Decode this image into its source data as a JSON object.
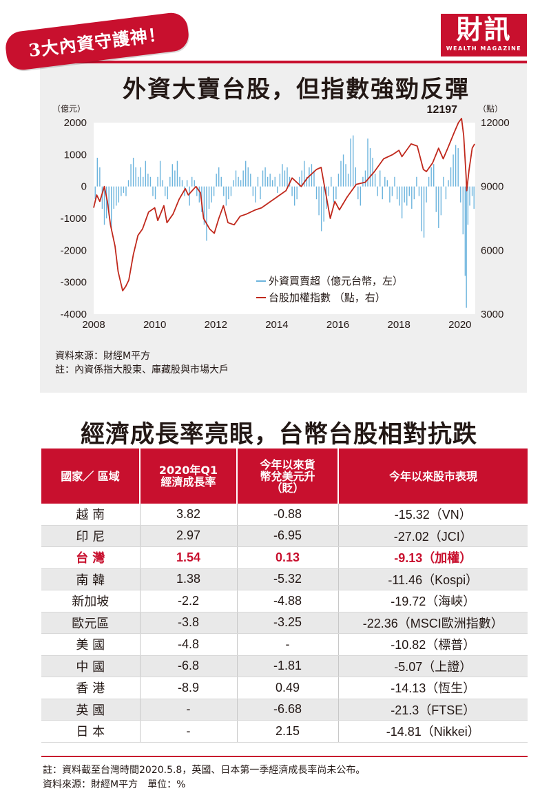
{
  "badge": "3大內資守護神！",
  "logo": {
    "main": "財訊",
    "sub": "WEALTH MAGAZINE"
  },
  "chart_title": "外資大賣台股，但指數強勁反彈",
  "chart_data": {
    "type": "bar+line",
    "title": "外資大賣台股，但指數強勁反彈",
    "left_axis": {
      "unit": "（億元）",
      "ticks": [
        "2000",
        "1000",
        "0",
        "-1000",
        "-2000",
        "-3000",
        "-4000"
      ],
      "range": [
        -4000,
        2000
      ]
    },
    "right_axis": {
      "unit": "（點）",
      "ticks": [
        "12000",
        "9000",
        "6000",
        "3000"
      ],
      "range": [
        3000,
        12000
      ]
    },
    "x_ticks": [
      "2008",
      "2010",
      "2012",
      "2014",
      "2016",
      "2018",
      "2020"
    ],
    "x_range": [
      2008.0,
      2020.5
    ],
    "peak_label": "12197",
    "peak": {
      "year": 2020.05,
      "value": 12197
    },
    "legend": [
      {
        "label": "外資買賣超（億元台幣，左）",
        "color": "#6cb4dd"
      },
      {
        "label": "台股加權指數 （點，右）",
        "color": "#c0281c"
      }
    ],
    "series": [
      {
        "name": "台股加權指數",
        "axis": "right",
        "color": "#c0281c",
        "points": [
          [
            2008.0,
            8000
          ],
          [
            2008.1,
            8600
          ],
          [
            2008.2,
            8300
          ],
          [
            2008.35,
            9000
          ],
          [
            2008.45,
            8300
          ],
          [
            2008.55,
            7200
          ],
          [
            2008.7,
            6200
          ],
          [
            2008.8,
            5000
          ],
          [
            2008.9,
            4400
          ],
          [
            2008.95,
            4100
          ],
          [
            2009.05,
            4300
          ],
          [
            2009.15,
            4600
          ],
          [
            2009.3,
            5800
          ],
          [
            2009.45,
            6700
          ],
          [
            2009.6,
            7000
          ],
          [
            2009.8,
            7800
          ],
          [
            2010.0,
            8000
          ],
          [
            2010.1,
            7400
          ],
          [
            2010.3,
            8100
          ],
          [
            2010.4,
            7300
          ],
          [
            2010.6,
            7700
          ],
          [
            2010.8,
            8400
          ],
          [
            2011.0,
            8900
          ],
          [
            2011.1,
            8600
          ],
          [
            2011.35,
            9000
          ],
          [
            2011.5,
            8700
          ],
          [
            2011.6,
            7500
          ],
          [
            2011.8,
            7000
          ],
          [
            2011.95,
            6800
          ],
          [
            2012.1,
            7500
          ],
          [
            2012.25,
            8100
          ],
          [
            2012.4,
            7300
          ],
          [
            2012.6,
            7200
          ],
          [
            2012.8,
            7600
          ],
          [
            2013.0,
            7700
          ],
          [
            2013.3,
            7900
          ],
          [
            2013.5,
            8000
          ],
          [
            2013.8,
            8300
          ],
          [
            2014.0,
            8500
          ],
          [
            2014.3,
            8800
          ],
          [
            2014.5,
            9400
          ],
          [
            2014.8,
            9000
          ],
          [
            2015.0,
            9400
          ],
          [
            2015.3,
            9800
          ],
          [
            2015.45,
            9900
          ],
          [
            2015.6,
            8700
          ],
          [
            2015.75,
            7500
          ],
          [
            2015.9,
            8300
          ],
          [
            2016.05,
            7900
          ],
          [
            2016.3,
            8500
          ],
          [
            2016.6,
            9100
          ],
          [
            2016.9,
            9200
          ],
          [
            2017.2,
            9700
          ],
          [
            2017.5,
            10300
          ],
          [
            2017.8,
            10500
          ],
          [
            2018.0,
            10700
          ],
          [
            2018.1,
            10400
          ],
          [
            2018.4,
            11000
          ],
          [
            2018.6,
            10900
          ],
          [
            2018.8,
            9800
          ],
          [
            2018.9,
            9700
          ],
          [
            2019.1,
            10100
          ],
          [
            2019.3,
            10800
          ],
          [
            2019.45,
            10300
          ],
          [
            2019.6,
            10800
          ],
          [
            2019.8,
            11500
          ],
          [
            2019.95,
            12000
          ],
          [
            2020.05,
            12197
          ],
          [
            2020.12,
            11400
          ],
          [
            2020.2,
            9500
          ],
          [
            2020.22,
            8800
          ],
          [
            2020.3,
            9800
          ],
          [
            2020.4,
            10800
          ],
          [
            2020.48,
            11000
          ]
        ]
      },
      {
        "name": "外資買賣超",
        "axis": "left",
        "color": "#6cb4dd",
        "points": [
          [
            2008.05,
            -400
          ],
          [
            2008.12,
            900
          ],
          [
            2008.2,
            600
          ],
          [
            2008.28,
            -700
          ],
          [
            2008.35,
            -1200
          ],
          [
            2008.42,
            -1000
          ],
          [
            2008.5,
            -900
          ],
          [
            2008.58,
            -1300
          ],
          [
            2008.66,
            -700
          ],
          [
            2008.74,
            -600
          ],
          [
            2008.82,
            -500
          ],
          [
            2008.9,
            -300
          ],
          [
            2008.98,
            -200
          ],
          [
            2009.06,
            -300
          ],
          [
            2009.14,
            200
          ],
          [
            2009.22,
            700
          ],
          [
            2009.3,
            900
          ],
          [
            2009.38,
            600
          ],
          [
            2009.46,
            300
          ],
          [
            2009.54,
            600
          ],
          [
            2009.62,
            300
          ],
          [
            2009.7,
            800
          ],
          [
            2009.78,
            400
          ],
          [
            2009.86,
            300
          ],
          [
            2009.94,
            -300
          ],
          [
            2010.02,
            -400
          ],
          [
            2010.1,
            300
          ],
          [
            2010.18,
            800
          ],
          [
            2010.26,
            200
          ],
          [
            2010.34,
            -300
          ],
          [
            2010.42,
            -400
          ],
          [
            2010.5,
            300
          ],
          [
            2010.58,
            700
          ],
          [
            2010.66,
            500
          ],
          [
            2010.74,
            800
          ],
          [
            2010.82,
            300
          ],
          [
            2010.9,
            200
          ],
          [
            2010.98,
            -300
          ],
          [
            2011.06,
            200
          ],
          [
            2011.14,
            -600
          ],
          [
            2011.22,
            300
          ],
          [
            2011.3,
            200
          ],
          [
            2011.38,
            -300
          ],
          [
            2011.46,
            -500
          ],
          [
            2011.54,
            -800
          ],
          [
            2011.62,
            -1200
          ],
          [
            2011.7,
            -1700
          ],
          [
            2011.78,
            -700
          ],
          [
            2011.86,
            -500
          ],
          [
            2011.94,
            -300
          ],
          [
            2012.02,
            400
          ],
          [
            2012.1,
            600
          ],
          [
            2012.18,
            300
          ],
          [
            2012.26,
            -300
          ],
          [
            2012.34,
            -600
          ],
          [
            2012.42,
            -400
          ],
          [
            2012.5,
            -300
          ],
          [
            2012.58,
            200
          ],
          [
            2012.66,
            500
          ],
          [
            2012.74,
            300
          ],
          [
            2012.82,
            200
          ],
          [
            2012.9,
            500
          ],
          [
            2012.98,
            800
          ],
          [
            2013.06,
            600
          ],
          [
            2013.14,
            400
          ],
          [
            2013.22,
            -300
          ],
          [
            2013.3,
            -500
          ],
          [
            2013.38,
            300
          ],
          [
            2013.46,
            -400
          ],
          [
            2013.54,
            500
          ],
          [
            2013.62,
            600
          ],
          [
            2013.7,
            300
          ],
          [
            2013.78,
            400
          ],
          [
            2013.86,
            200
          ],
          [
            2013.94,
            300
          ],
          [
            2014.02,
            -200
          ],
          [
            2014.1,
            400
          ],
          [
            2014.18,
            700
          ],
          [
            2014.26,
            500
          ],
          [
            2014.34,
            600
          ],
          [
            2014.42,
            300
          ],
          [
            2014.5,
            -300
          ],
          [
            2014.58,
            -600
          ],
          [
            2014.66,
            -400
          ],
          [
            2014.74,
            300
          ],
          [
            2014.82,
            500
          ],
          [
            2014.9,
            800
          ],
          [
            2014.98,
            300
          ],
          [
            2015.06,
            600
          ],
          [
            2015.14,
            700
          ],
          [
            2015.22,
            500
          ],
          [
            2015.3,
            -400
          ],
          [
            2015.38,
            -900
          ],
          [
            2015.46,
            -1400
          ],
          [
            2015.54,
            -1100
          ],
          [
            2015.62,
            -700
          ],
          [
            2015.7,
            -300
          ],
          [
            2015.78,
            300
          ],
          [
            2015.86,
            -500
          ],
          [
            2015.94,
            -400
          ],
          [
            2016.02,
            400
          ],
          [
            2016.1,
            800
          ],
          [
            2016.18,
            1000
          ],
          [
            2016.26,
            700
          ],
          [
            2016.34,
            400
          ],
          [
            2016.42,
            1500
          ],
          [
            2016.5,
            1600
          ],
          [
            2016.58,
            600
          ],
          [
            2016.66,
            -400
          ],
          [
            2016.74,
            -600
          ],
          [
            2016.82,
            300
          ],
          [
            2016.9,
            500
          ],
          [
            2016.98,
            1500
          ],
          [
            2017.06,
            1200
          ],
          [
            2017.14,
            900
          ],
          [
            2017.22,
            400
          ],
          [
            2017.3,
            -300
          ],
          [
            2017.38,
            500
          ],
          [
            2017.46,
            -400
          ],
          [
            2017.54,
            300
          ],
          [
            2017.62,
            200
          ],
          [
            2017.7,
            -500
          ],
          [
            2017.78,
            -300
          ],
          [
            2017.86,
            300
          ],
          [
            2017.94,
            -400
          ],
          [
            2018.02,
            -600
          ],
          [
            2018.1,
            -1000
          ],
          [
            2018.18,
            -500
          ],
          [
            2018.26,
            -600
          ],
          [
            2018.34,
            -300
          ],
          [
            2018.42,
            -700
          ],
          [
            2018.5,
            -400
          ],
          [
            2018.58,
            300
          ],
          [
            2018.66,
            -300
          ],
          [
            2018.74,
            -1400
          ],
          [
            2018.82,
            -1600
          ],
          [
            2018.9,
            -500
          ],
          [
            2018.98,
            300
          ],
          [
            2019.06,
            600
          ],
          [
            2019.14,
            700
          ],
          [
            2019.22,
            -800
          ],
          [
            2019.3,
            -1300
          ],
          [
            2019.38,
            -900
          ],
          [
            2019.46,
            300
          ],
          [
            2019.54,
            -400
          ],
          [
            2019.62,
            200
          ],
          [
            2019.7,
            600
          ],
          [
            2019.78,
            1000
          ],
          [
            2019.86,
            1300
          ],
          [
            2019.94,
            1200
          ],
          [
            2020.02,
            -500
          ],
          [
            2020.1,
            -1500
          ],
          [
            2020.17,
            -2800
          ],
          [
            2020.21,
            -3800
          ],
          [
            2020.26,
            -1200
          ],
          [
            2020.32,
            -600
          ],
          [
            2020.4,
            -300
          ],
          [
            2020.46,
            -700
          ]
        ]
      }
    ]
  },
  "chart_notes": [
    "資料來源：財經M平方",
    "註：內資係指大股東、庫藏股與市場大戶"
  ],
  "table_title": "經濟成長率亮眼，台幣台股相對抗跌",
  "table": {
    "headers": [
      "國家／ 區域",
      "2020年Q1\n經濟成長率",
      "今年以來貨\n幣兌美元升\n（貶）",
      "今年以來股市表現"
    ],
    "rows": [
      {
        "country": "越 南",
        "gdp": "3.82",
        "fx": "-0.88",
        "stock": "-15.32（VN）"
      },
      {
        "country": "印 尼",
        "gdp": "2.97",
        "fx": "-6.95",
        "stock": "-27.02（JCI）"
      },
      {
        "country": "台 灣",
        "gdp": "1.54",
        "fx": "0.13",
        "stock": "-9.13（加權）"
      },
      {
        "country": "南 韓",
        "gdp": "1.38",
        "fx": "-5.32",
        "stock": "-11.46（Kospi）"
      },
      {
        "country": "新加坡",
        "gdp": "-2.2",
        "fx": "-4.88",
        "stock": "-19.72（海峽）"
      },
      {
        "country": "歐元區",
        "gdp": "-3.8",
        "fx": "-3.25",
        "stock": "-22.36（MSCI歐洲指數）"
      },
      {
        "country": "美 國",
        "gdp": "-4.8",
        "fx": "-",
        "stock": "-10.82（標普）"
      },
      {
        "country": "中 國",
        "gdp": "-6.8",
        "fx": "-1.81",
        "stock": "-5.07（上證）"
      },
      {
        "country": "香 港",
        "gdp": "-8.9",
        "fx": "0.49",
        "stock": "-14.13（恆生）"
      },
      {
        "country": "英 國",
        "gdp": "-",
        "fx": "-6.68",
        "stock": "-21.3（FTSE）"
      },
      {
        "country": "日 本",
        "gdp": "-",
        "fx": "2.15",
        "stock": "-14.81（Nikkei）"
      }
    ]
  },
  "table_notes": [
    "註：資料截至台灣時間2020.5.8，英國、日本第一季經濟成長率尚未公布。",
    "資料來源：財經M平方　單位：%"
  ]
}
